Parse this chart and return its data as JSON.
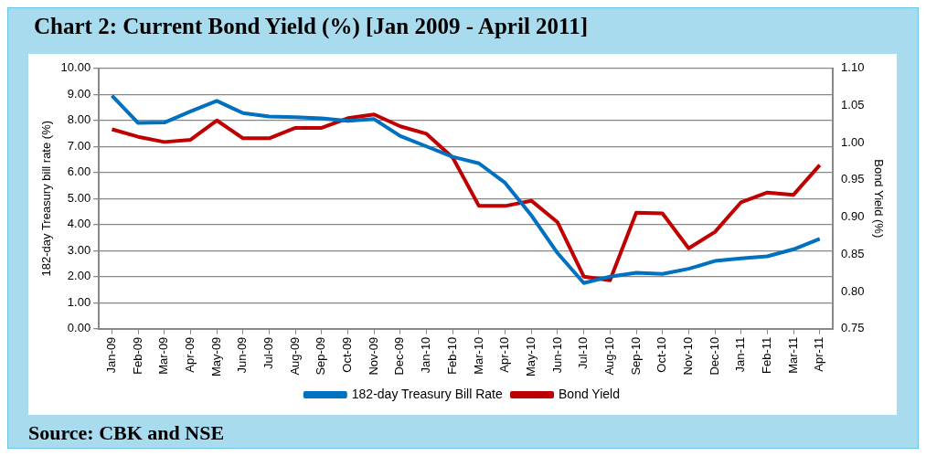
{
  "chart_data": {
    "type": "line",
    "title": "Chart 2:  Current Bond Yield (%) [Jan 2009 - April 2011]",
    "categories": [
      "Jan-09",
      "Feb-09",
      "Mar-09",
      "Apr-09",
      "May-09",
      "Jun-09",
      "Jul-09",
      "Aug-09",
      "Sep-09",
      "Oct-09",
      "Nov-09",
      "Dec-09",
      "Jan-10",
      "Feb-10",
      "Mar-10",
      "Apr-10",
      "May-10",
      "Jun-10",
      "Jul-10",
      "Aug-10",
      "Sep-10",
      "Oct-10",
      "Nov-10",
      "Dec-10",
      "Jan-11",
      "Feb-11",
      "Mar-11",
      "Apr-11"
    ],
    "series": [
      {
        "name": "182-day Treasury Bill Rate",
        "color": "#0070c0",
        "values": [
          8.95,
          7.9,
          7.92,
          8.35,
          8.75,
          8.28,
          8.15,
          8.12,
          8.08,
          7.98,
          8.05,
          7.4,
          7.0,
          6.6,
          6.35,
          5.6,
          4.35,
          2.9,
          1.75,
          2.0,
          2.15,
          2.1,
          2.3,
          2.6,
          2.7,
          2.78,
          3.05,
          3.45
        ]
      },
      {
        "name": "Bond Yield",
        "color": "#c00000",
        "axis": "y2",
        "values": [
          1.018,
          1.008,
          1.001,
          1.004,
          1.03,
          1.006,
          1.006,
          1.02,
          1.02,
          1.033,
          1.038,
          1.022,
          1.012,
          0.98,
          0.915,
          0.915,
          0.922,
          0.893,
          0.82,
          0.815,
          0.906,
          0.905,
          0.858,
          0.88,
          0.92,
          0.933,
          0.93,
          0.97
        ]
      }
    ],
    "ylabel": "182-day Treasury bill rate (%)",
    "y2label": "Bond Yield (%)",
    "ylim": [
      0,
      10
    ],
    "yticks": [
      {
        "value": 0,
        "label": "0.00"
      },
      {
        "value": 1,
        "label": "1.00"
      },
      {
        "value": 2,
        "label": "2.00"
      },
      {
        "value": 3,
        "label": "3.00"
      },
      {
        "value": 4,
        "label": "4.00"
      },
      {
        "value": 5,
        "label": "5.00"
      },
      {
        "value": 6,
        "label": "6.00"
      },
      {
        "value": 7,
        "label": "7.00"
      },
      {
        "value": 8,
        "label": "8.00"
      },
      {
        "value": 9,
        "label": "9.00"
      },
      {
        "value": 10,
        "label": "10.00"
      }
    ],
    "y2lim": [
      0.75,
      1.1
    ],
    "y2ticks": [
      0.75,
      {
        "value": 0.8,
        "label": "0.80"
      },
      0.85,
      {
        "value": 0.9,
        "label": "0.90"
      },
      0.95,
      {
        "value": 1,
        "label": "1.00"
      },
      1.05,
      {
        "value": 1.1,
        "label": "1.10"
      }
    ],
    "grid": "y",
    "legend": "bottom",
    "marker": "none",
    "line_style": "solid",
    "annotations": [
      "Source:  CBK and NSE"
    ]
  }
}
